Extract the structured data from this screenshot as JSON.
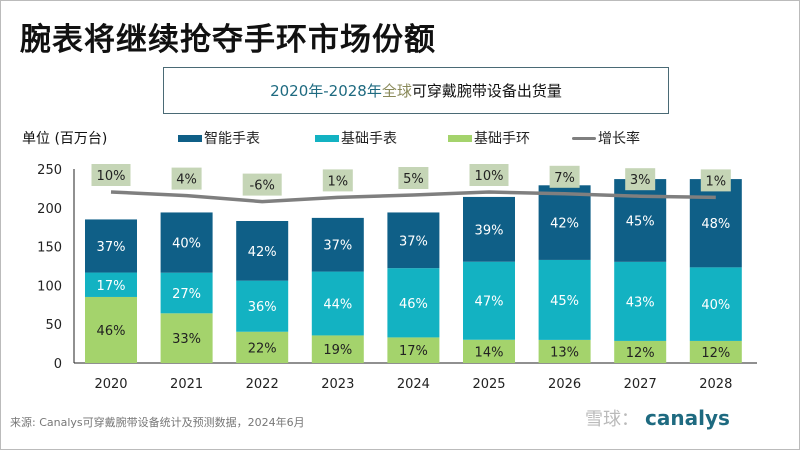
{
  "title": "腕表将继续抢夺手环市场份额",
  "subtitle": {
    "part1": "2020年-2028年 ",
    "part2": "全球",
    "part3": "可穿戴腕带设备出货量"
  },
  "colors": {
    "smartwatch": "#0f5f87",
    "basic_watch": "#13b2c2",
    "basic_band": "#a4d36c",
    "growth": "#7f7f7f",
    "growth_label_bg": "#c5d5b6"
  },
  "chart_data": {
    "type": "bar",
    "stacked": true,
    "ylabel": "单位 (百万台)",
    "ylim": [
      0,
      250
    ],
    "yticks": [
      "0",
      "50",
      "100",
      "150",
      "200",
      "250"
    ],
    "categories": [
      "2020",
      "2021",
      "2022",
      "2023",
      "2024",
      "2025",
      "2026",
      "2027",
      "2028"
    ],
    "totals": [
      185,
      194,
      183,
      187,
      194,
      214,
      229,
      237,
      237
    ],
    "series": [
      {
        "name": "基础手环",
        "share_labels": [
          "46%",
          "33%",
          "22%",
          "19%",
          "17%",
          "14%",
          "13%",
          "12%",
          "12%"
        ],
        "share": [
          46,
          33,
          22,
          19,
          17,
          14,
          13,
          12,
          12
        ]
      },
      {
        "name": "基础手表",
        "share_labels": [
          "17%",
          "27%",
          "36%",
          "44%",
          "46%",
          "47%",
          "45%",
          "43%",
          "40%"
        ],
        "share": [
          17,
          27,
          36,
          44,
          46,
          47,
          45,
          43,
          40
        ]
      },
      {
        "name": "智能手表",
        "share_labels": [
          "37%",
          "40%",
          "42%",
          "37%",
          "37%",
          "39%",
          "42%",
          "45%",
          "48%"
        ],
        "share": [
          37,
          40,
          42,
          37,
          37,
          39,
          42,
          45,
          48
        ]
      }
    ],
    "growth": {
      "name": "增长率",
      "labels": [
        "10%",
        "4%",
        "-6%",
        "1%",
        "5%",
        "10%",
        "7%",
        "3%",
        "1%"
      ],
      "values": [
        10,
        4,
        -6,
        1,
        5,
        10,
        7,
        3,
        1
      ]
    },
    "legend": [
      "智能手表",
      "基础手表",
      "基础手环",
      "增长率"
    ],
    "legend_placement": "top",
    "grid": false
  },
  "footer": "来源: Canalys可穿戴腕带设备统计及预测数据，2024年6月",
  "watermark": {
    "text": "雪球：",
    "brand": "canalys"
  }
}
